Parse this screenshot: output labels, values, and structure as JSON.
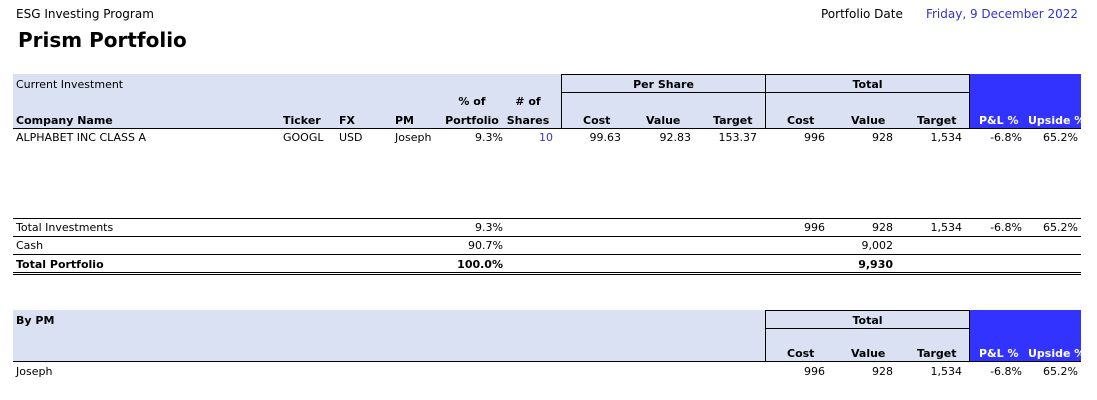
{
  "header": {
    "program": "ESG Investing Program",
    "title": "Prism Portfolio",
    "date_label": "Portfolio Date",
    "date_value": "Friday, 9 December 2022"
  },
  "table1": {
    "section_label": "Current Investment",
    "group_per_share": "Per Share",
    "group_total": "Total",
    "cols": {
      "company": "Company Name",
      "ticker": "Ticker",
      "fx": "FX",
      "pm": "PM",
      "pct_top": "% of",
      "pct_bottom": "Portfolio",
      "shares_top": "# of",
      "shares_bottom": "Shares",
      "ps_cost": "Cost",
      "ps_value": "Value",
      "ps_target": "Target",
      "t_cost": "Cost",
      "t_value": "Value",
      "t_target": "Target",
      "pl": "P&L %",
      "upside": "Upside %"
    },
    "rows": [
      {
        "company": "ALPHABET INC CLASS A",
        "ticker": "GOOGL",
        "fx": "USD",
        "pm": "Joseph",
        "pct": "9.3%",
        "shares": "10",
        "ps_cost": "99.63",
        "ps_value": "92.83",
        "ps_target": "153.37",
        "t_cost": "996",
        "t_value": "928",
        "t_target": "1,534",
        "pl": "-6.8%",
        "upside": "65.2%"
      }
    ]
  },
  "summary": {
    "total_investments": {
      "label": "Total Investments",
      "pct": "9.3%",
      "cost": "996",
      "value": "928",
      "target": "1,534",
      "pl": "-6.8%",
      "upside": "65.2%"
    },
    "cash": {
      "label": "Cash",
      "pct": "90.7%",
      "value": "9,002"
    },
    "total_portfolio": {
      "label": "Total Portfolio",
      "pct": "100.0%",
      "value": "9,930"
    }
  },
  "table2": {
    "section_label": "By PM",
    "group_total": "Total",
    "cols": {
      "cost": "Cost",
      "value": "Value",
      "target": "Target",
      "pl": "P&L %",
      "upside": "Upside %"
    },
    "rows": [
      {
        "pm": "Joseph",
        "cost": "996",
        "value": "928",
        "target": "1,534",
        "pl": "-6.8%",
        "upside": "65.2%"
      }
    ]
  }
}
